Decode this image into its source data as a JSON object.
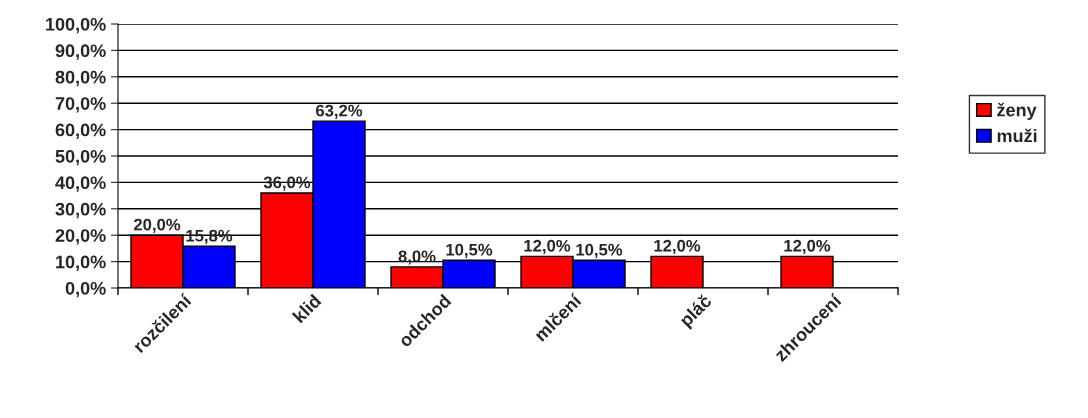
{
  "chart_data": {
    "type": "bar",
    "categories": [
      "rozčilení",
      "klid",
      "odchod",
      "mlčení",
      "pláč",
      "zhroucení"
    ],
    "series": [
      {
        "name": "ženy",
        "color": "#ff0000",
        "values": [
          20.0,
          36.0,
          8.0,
          12.0,
          12.0,
          12.0
        ],
        "value_labels": [
          "20,0%",
          "36,0%",
          "8,0%",
          "12,0%",
          "12,0%",
          "12,0%"
        ]
      },
      {
        "name": "muži",
        "color": "#0000ff",
        "values": [
          15.8,
          63.2,
          10.5,
          10.5,
          null,
          null
        ],
        "value_labels": [
          "15,8%",
          "63,2%",
          "10,5%",
          "10,5%",
          null,
          null
        ]
      }
    ],
    "ylim": [
      0,
      100
    ],
    "yticks": [
      {
        "value": 0,
        "label": "0,0%"
      },
      {
        "value": 10,
        "label": "10,0%"
      },
      {
        "value": 20,
        "label": "20,0%"
      },
      {
        "value": 30,
        "label": "30,0%"
      },
      {
        "value": 40,
        "label": "40,0%"
      },
      {
        "value": 50,
        "label": "50,0%"
      },
      {
        "value": 60,
        "label": "60,0%"
      },
      {
        "value": 70,
        "label": "70,0%"
      },
      {
        "value": 80,
        "label": "80,0%"
      },
      {
        "value": 90,
        "label": "90,0%"
      },
      {
        "value": 100,
        "label": "100,0%"
      }
    ],
    "grid": "y",
    "legend": "right"
  }
}
